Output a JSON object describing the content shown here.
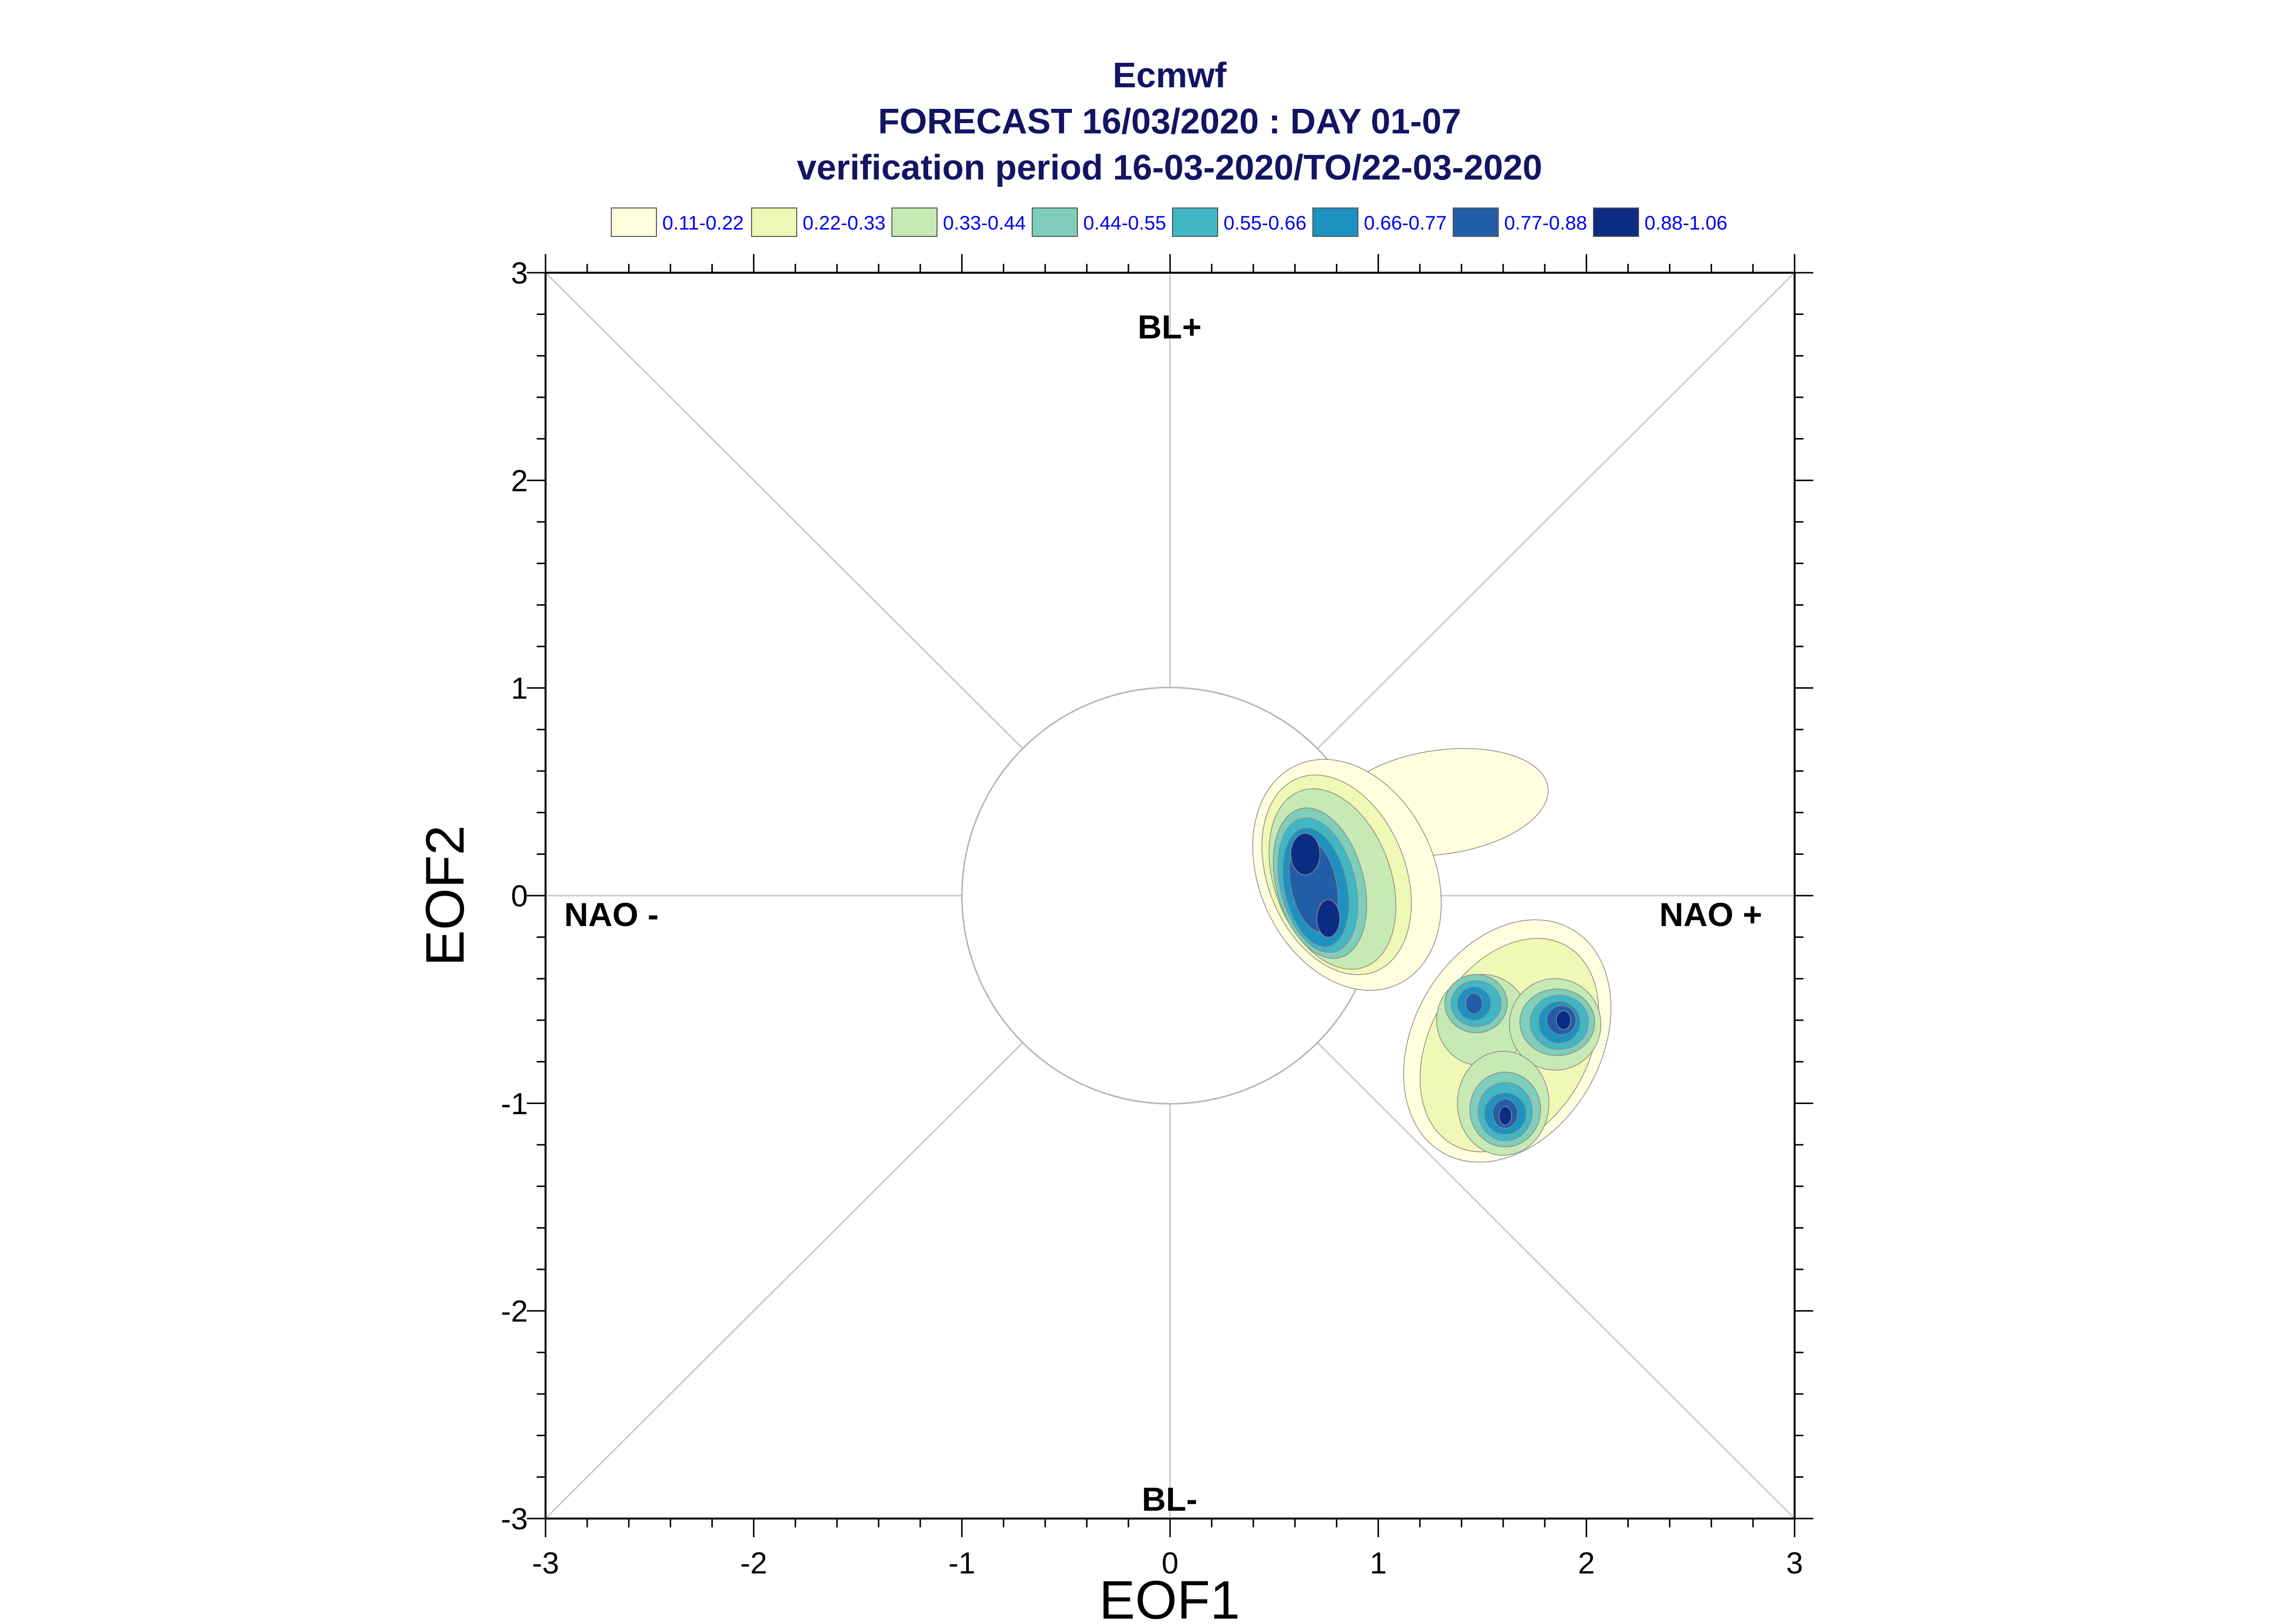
{
  "title": {
    "line1": "Ecmwf",
    "line2": "FORECAST 16/03/2020 : DAY 01-07",
    "line3": "verification period 16-03-2020/TO/22-03-2020"
  },
  "chart_data": {
    "type": "contour",
    "xlabel": "EOF1",
    "ylabel": "EOF2",
    "xlim": [
      -3,
      3
    ],
    "ylim": [
      -3,
      3
    ],
    "xticks": [
      "-3",
      "-2",
      "-1",
      "0",
      "1",
      "2",
      "3"
    ],
    "yticks": [
      "3",
      "2",
      "1",
      "0",
      "-1",
      "-2",
      "-3"
    ],
    "regime_labels": {
      "top": "BL+",
      "bottom": "BL-",
      "left": "NAO -",
      "right": "NAO +"
    },
    "reference_circle_radius": 1,
    "diagonals": true,
    "legend": {
      "placement": "top",
      "entries": [
        {
          "label": "0.11-0.22",
          "color": "#ffffe0"
        },
        {
          "label": "0.22-0.33",
          "color": "#eff8b4"
        },
        {
          "label": "0.33-0.44",
          "color": "#c7e9b4"
        },
        {
          "label": "0.44-0.55",
          "color": "#7fcdbb"
        },
        {
          "label": "0.55-0.66",
          "color": "#41b6c4"
        },
        {
          "label": "0.66-0.77",
          "color": "#1d91c0"
        },
        {
          "label": "0.77-0.88",
          "color": "#225ea8"
        },
        {
          "label": "0.88-1.06",
          "color": "#0c2c84"
        }
      ]
    },
    "density_peaks": [
      {
        "eof1": 0.65,
        "eof2": 0.2,
        "peak_level": "0.88-1.06"
      },
      {
        "eof1": 0.75,
        "eof2": -0.1,
        "peak_level": "0.88-1.06"
      },
      {
        "eof1": 1.45,
        "eof2": -0.52,
        "peak_level": "0.77-0.88"
      },
      {
        "eof1": 1.88,
        "eof2": -0.6,
        "peak_level": "0.88-1.06"
      },
      {
        "eof1": 1.6,
        "eof2": -1.05,
        "peak_level": "0.88-1.06"
      }
    ]
  }
}
